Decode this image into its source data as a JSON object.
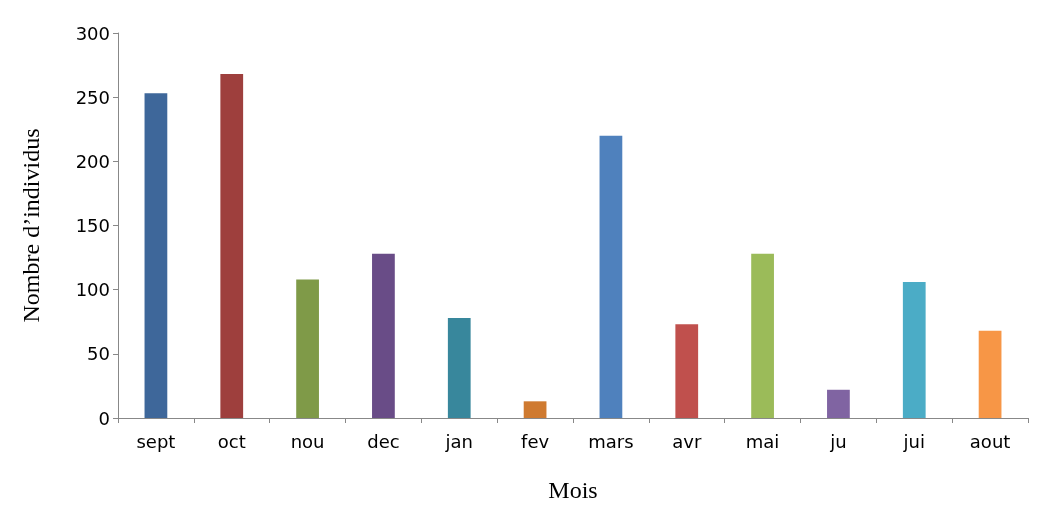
{
  "chart_data": {
    "type": "bar",
    "xlabel": "Mois",
    "ylabel": "Nombre d’individus",
    "categories": [
      "sept",
      "oct",
      "nou",
      "dec",
      "jan",
      "fev",
      "mars",
      "avr",
      "mai",
      "ju",
      "jui",
      "aout"
    ],
    "values": [
      253,
      268,
      108,
      128,
      78,
      13,
      220,
      73,
      128,
      22,
      106,
      68
    ],
    "colors": [
      "#3e679a",
      "#9e3f3d",
      "#7f9a48",
      "#694c87",
      "#38879c",
      "#cf7a30",
      "#4f81bd",
      "#c0504d",
      "#9bbb59",
      "#8064a2",
      "#4bacc6",
      "#f79646"
    ],
    "ylim": [
      0,
      300
    ],
    "yticks": [
      0,
      50,
      100,
      150,
      200,
      250,
      300
    ],
    "grid": false
  }
}
